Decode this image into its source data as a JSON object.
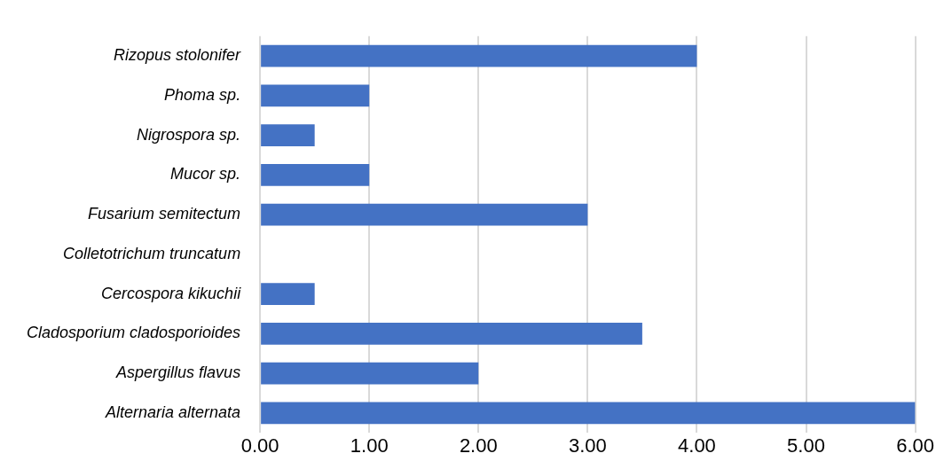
{
  "chart_data": {
    "type": "bar",
    "orientation": "horizontal",
    "categories": [
      "Rizopus stolonifer",
      "Phoma sp.",
      "Nigrospora sp.",
      "Mucor sp.",
      "Fusarium semitectum",
      "Colletotrichum truncatum",
      "Cercospora kikuchii",
      "Cladosporium cladosporioides",
      "Aspergillus flavus",
      "Alternaria alternata"
    ],
    "values": [
      4,
      1,
      0.5,
      1,
      3,
      0,
      0.5,
      3.5,
      2,
      6
    ],
    "colors": [
      "#4472c4",
      "#4472c4",
      "#4472c4",
      "#4472c4",
      "#4472c4",
      "#c00000",
      "#4472c4",
      "#4472c4",
      "#4472c4",
      "#4472c4"
    ],
    "xlim": [
      0,
      6
    ],
    "xticks": [
      {
        "value": 0,
        "label": "0.00"
      },
      {
        "value": 1,
        "label": "1.00"
      },
      {
        "value": 2,
        "label": "2.00"
      },
      {
        "value": 3,
        "label": "3.00"
      },
      {
        "value": 4,
        "label": "4.00"
      },
      {
        "value": 5,
        "label": "5.00"
      },
      {
        "value": 6,
        "label": "6.00"
      }
    ],
    "grid": "x",
    "legend": false
  }
}
